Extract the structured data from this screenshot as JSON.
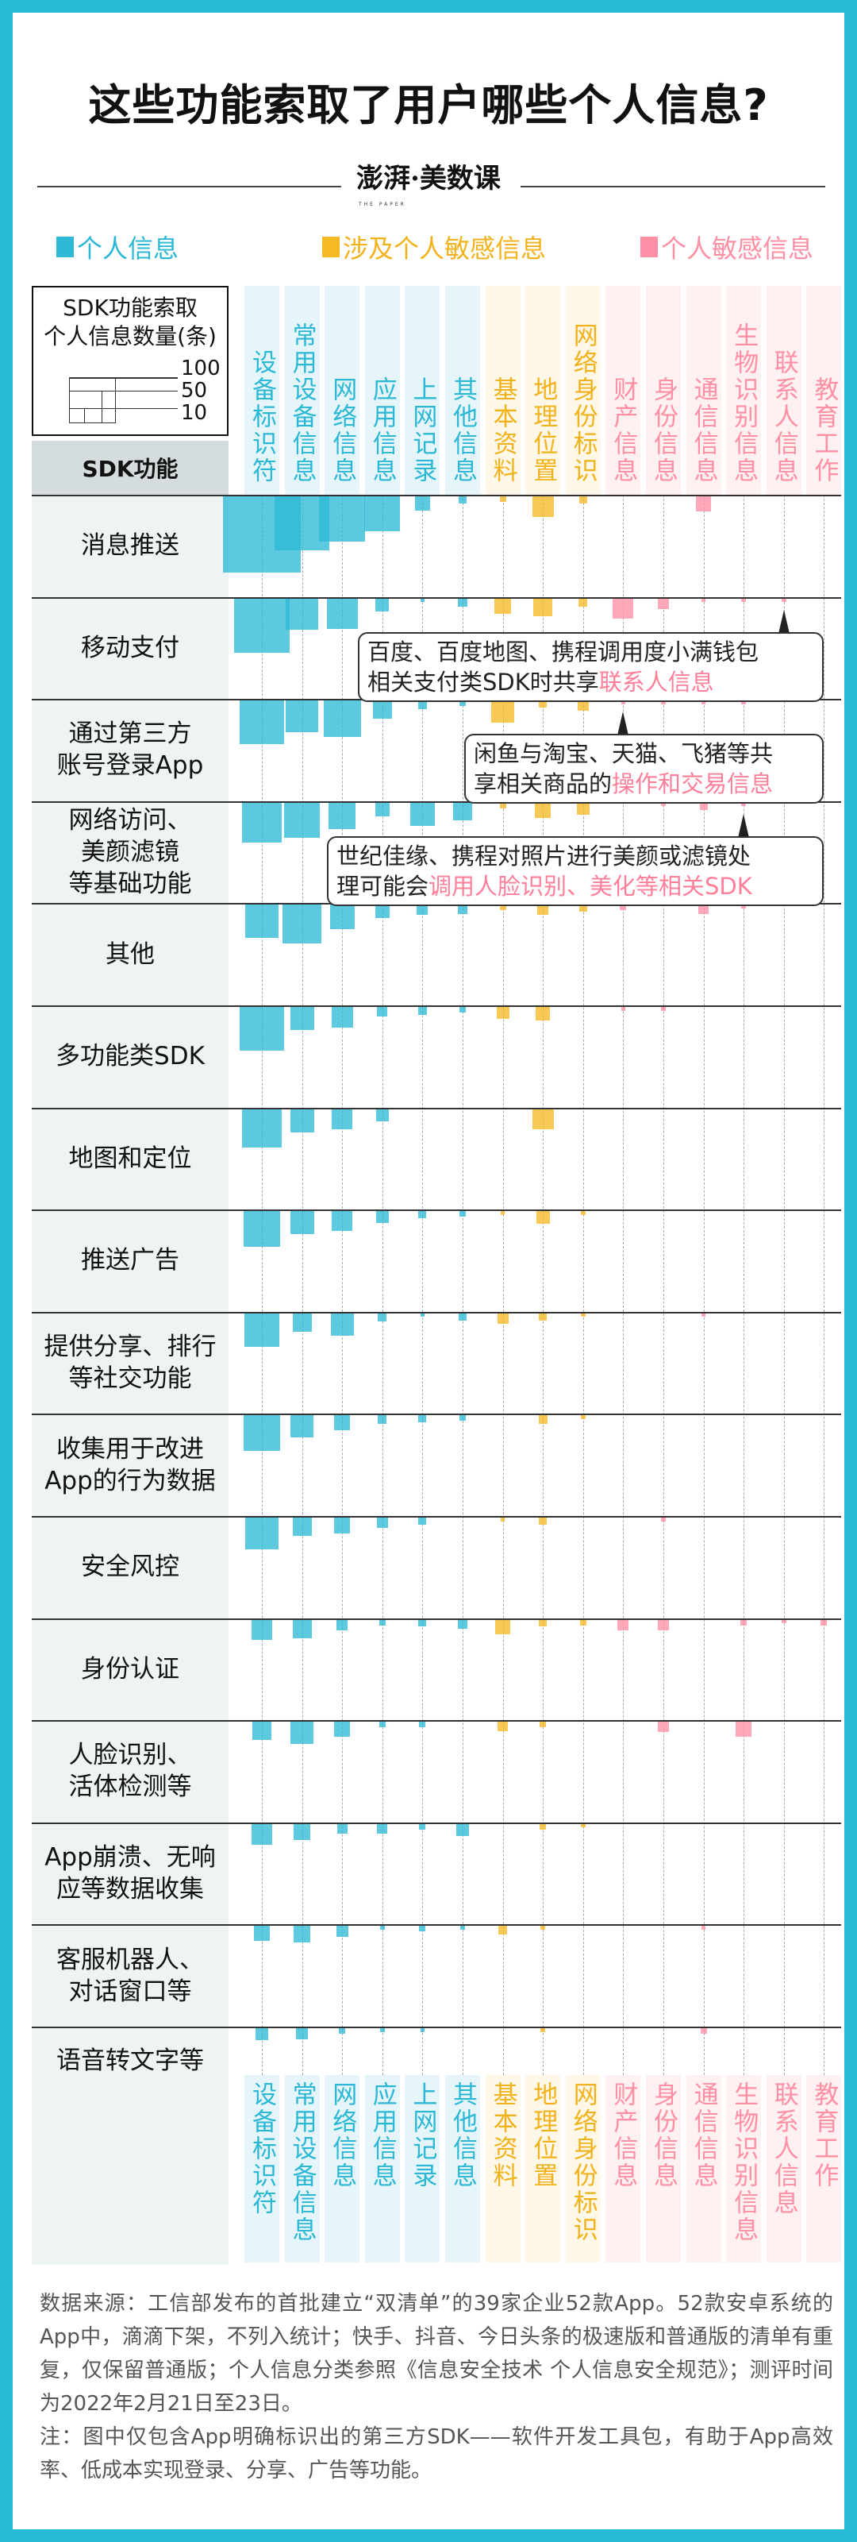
{
  "title": "这些功能索取了用户哪些个人信息?",
  "logo": {
    "text": "澎湃·美数课",
    "sub": "THE PAPER"
  },
  "legend": [
    {
      "label": "个人信息",
      "color": "#2EBAD6"
    },
    {
      "label": "涉及个人敏感信息",
      "color": "#F5B923"
    },
    {
      "label": "个人敏感信息",
      "color": "#FF8FA5"
    }
  ],
  "size_legend": {
    "title": "SDK功能索取\n个人信息数量(条)",
    "values": [
      100,
      50,
      10
    ],
    "labels": [
      "100",
      "50",
      "10"
    ]
  },
  "chart_data": {
    "type": "heatmap",
    "encoding": "square area proportional to count",
    "row_header": "SDK功能",
    "columns": [
      "设备标识符",
      "常用设备信息",
      "网络信息",
      "应用信息",
      "上网记录",
      "其他信息",
      "基本资料",
      "地理位置",
      "网络身份标识",
      "财产信息",
      "身份信息",
      "通信信息",
      "生物识别信息",
      "联系人信息",
      "教育工作"
    ],
    "column_groups": [
      0,
      0,
      0,
      0,
      0,
      0,
      1,
      1,
      1,
      2,
      2,
      2,
      2,
      2,
      2
    ],
    "group_colors": {
      "text": [
        "#2BB8D6",
        "#F2B21B",
        "#FF8FA3"
      ],
      "band": [
        "#E6F5FA",
        "#FFF7E8",
        "#FFF0F2"
      ],
      "mark": [
        "#2EBAD6",
        "#F5B923",
        "#FF8FA5"
      ]
    },
    "rows": [
      {
        "label": "消息推送",
        "values": [
          292,
          146,
          102,
          62,
          11,
          3,
          2,
          22,
          3,
          0,
          0,
          12,
          0,
          0,
          0
        ]
      },
      {
        "label": "移动支付",
        "values": [
          150,
          50,
          47,
          9,
          1,
          4,
          13,
          17,
          4,
          21,
          6,
          1,
          1,
          1,
          0
        ]
      },
      {
        "label": "通过第三方\n账号登录App",
        "values": [
          97,
          52,
          67,
          17,
          4,
          2,
          26,
          3,
          6,
          1,
          1,
          1,
          1,
          0,
          0
        ]
      },
      {
        "label": "网络访问、\n美颜滤镜\n等基础功能",
        "values": [
          80,
          62,
          35,
          10,
          29,
          17,
          2,
          12,
          8,
          0,
          1,
          3,
          1,
          0,
          0
        ]
      },
      {
        "label": "其他",
        "values": [
          55,
          75,
          30,
          10,
          6,
          5,
          2,
          6,
          3,
          2,
          0,
          5,
          1,
          0,
          0
        ]
      },
      {
        "label": "多功能类SDK",
        "values": [
          97,
          28,
          23,
          5,
          4,
          2,
          8,
          10,
          0,
          1,
          1,
          0,
          0,
          0,
          0
        ]
      },
      {
        "label": "地图和定位",
        "values": [
          74,
          28,
          21,
          8,
          0,
          0,
          0,
          22,
          0,
          0,
          0,
          0,
          0,
          0,
          0
        ]
      },
      {
        "label": "推送广告",
        "values": [
          65,
          28,
          21,
          8,
          3,
          2,
          1,
          9,
          1,
          0,
          0,
          0,
          0,
          0,
          0
        ]
      },
      {
        "label": "提供分享、排行\n等社交功能",
        "values": [
          57,
          18,
          26,
          4,
          1,
          3,
          6,
          3,
          1,
          0,
          0,
          1,
          0,
          0,
          0
        ]
      },
      {
        "label": "收集用于改进\nApp的行为数据",
        "values": [
          65,
          26,
          12,
          4,
          3,
          2,
          0,
          4,
          1,
          0,
          0,
          0,
          0,
          0,
          0
        ]
      },
      {
        "label": "安全风控",
        "values": [
          52,
          18,
          13,
          6,
          3,
          0,
          1,
          3,
          0,
          0,
          1,
          0,
          0,
          0,
          0
        ]
      },
      {
        "label": "身份认证",
        "values": [
          22,
          18,
          6,
          2,
          3,
          5,
          12,
          3,
          2,
          6,
          6,
          0,
          2,
          1,
          2
        ]
      },
      {
        "label": "人脸识别、\n活体检测等",
        "values": [
          18,
          26,
          12,
          2,
          2,
          0,
          5,
          2,
          0,
          0,
          6,
          0,
          12,
          0,
          0
        ]
      },
      {
        "label": "App崩溃、无响\n应等数据收集",
        "values": [
          22,
          14,
          5,
          5,
          2,
          8,
          0,
          2,
          1,
          0,
          0,
          0,
          0,
          0,
          0
        ]
      },
      {
        "label": "客服机器人、\n对话窗口等",
        "values": [
          12,
          14,
          7,
          1,
          2,
          1,
          4,
          1,
          0,
          0,
          0,
          1,
          0,
          0,
          0
        ]
      },
      {
        "label": "语音转文字等",
        "values": [
          8,
          7,
          2,
          1,
          1,
          0,
          0,
          1,
          0,
          0,
          0,
          2,
          0,
          0,
          0
        ]
      }
    ],
    "annotations": [
      {
        "row": 1,
        "column": 13,
        "text": "百度、百度地图、携程调用度小满钱包\n相关支付类SDK时共享",
        "highlight": "联系人信息"
      },
      {
        "row": 2,
        "column": 9,
        "text": "闲鱼与淘宝、天猫、飞猪等共\n享相关商品的",
        "highlight": "操作和交易信息"
      },
      {
        "row": 3,
        "column": 12,
        "text": "世纪佳缘、携程对照片进行美颜或滤镜处\n理可能会",
        "highlight": "调用人脸识别、美化等相关SDK"
      }
    ]
  },
  "footer": {
    "source": "数据来源：工信部发布的首批建立“双清单”的39家企业52款App。52款安卓系统的App中，滴滴下架，不列入统计；快手、抖音、今日头条的极速版和普通版的清单有重复，仅保留普通版；个人信息分类参照《信息安全技术 个人信息安全规范》；测评时间为2022年2月21日至23日。",
    "note": "注：图中仅包含App明确标识出的第三方SDK——软件开发工具包，有助于App高效率、低成本实现登录、分享、广告等功能。"
  }
}
